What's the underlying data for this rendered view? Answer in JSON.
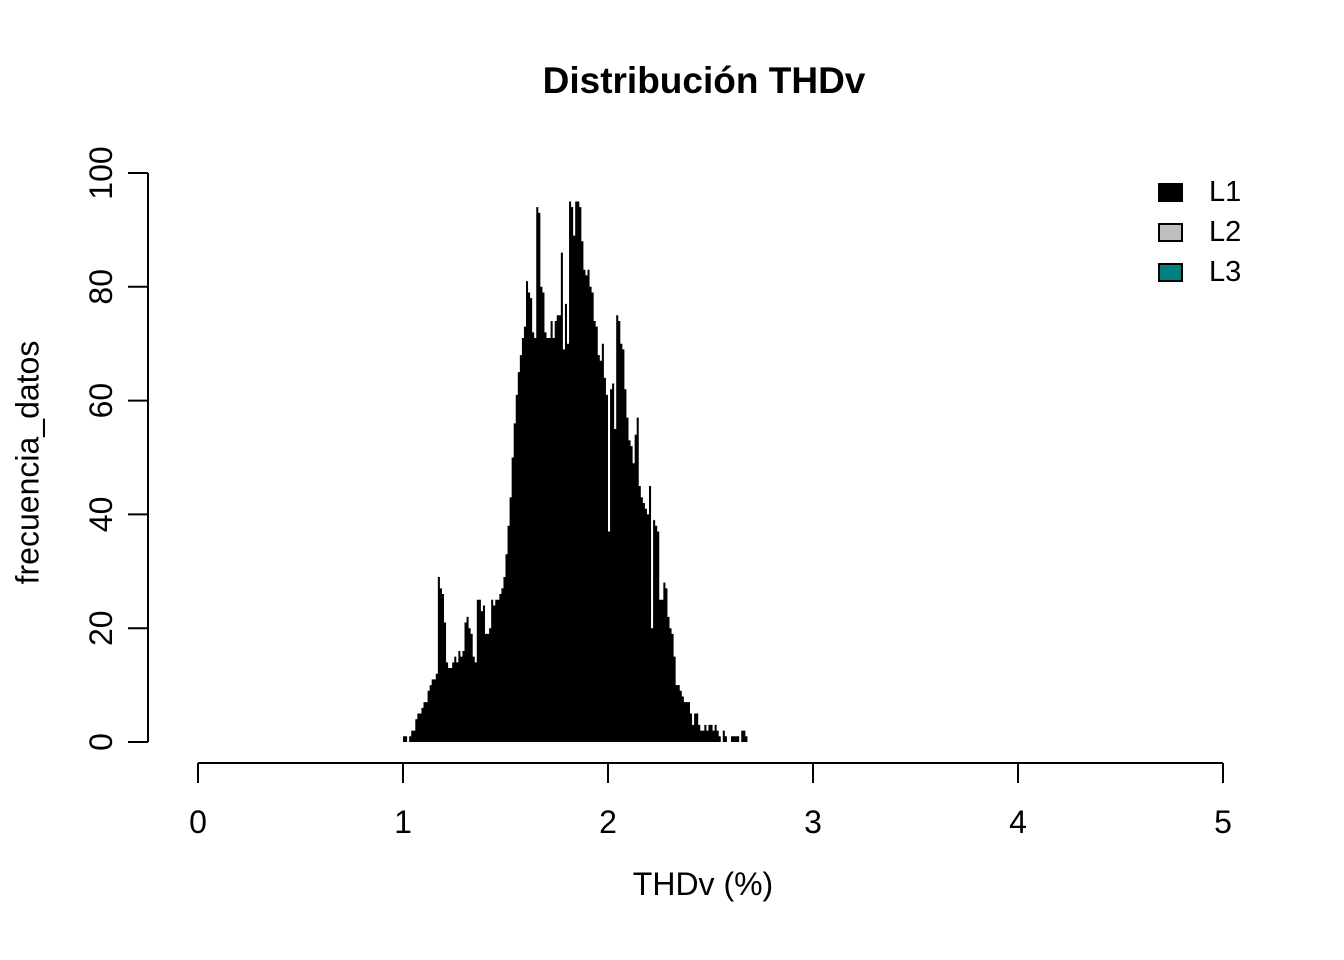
{
  "chart": {
    "title": "Distribución THDv",
    "xlabel": "THDv (%)",
    "ylabel": "frecuencia_datos"
  },
  "legend": {
    "items": [
      {
        "label": "L1",
        "color": "#000000"
      },
      {
        "label": "L2",
        "color": "#BEBEBE"
      },
      {
        "label": "L3",
        "color": "#008080"
      }
    ]
  },
  "chart_data": {
    "type": "bar",
    "subtype": "histogram",
    "title": "Distribución THDv",
    "xlabel": "THDv (%)",
    "ylabel": "frecuencia_datos",
    "xlim": [
      0,
      5
    ],
    "ylim": [
      0,
      100
    ],
    "xticks": [
      0,
      1,
      2,
      3,
      4,
      5
    ],
    "yticks": [
      0,
      20,
      40,
      60,
      80,
      100
    ],
    "grid": false,
    "legend_position": "top-right",
    "visible_series": "L1",
    "bar_color": "#000000",
    "bin_start": 1.0,
    "bin_width": 0.01,
    "bins": [
      1,
      1,
      0,
      1,
      2,
      2,
      4,
      5,
      5,
      6,
      7,
      7,
      9,
      10,
      11,
      11,
      12,
      29,
      27,
      26,
      21,
      14,
      13,
      13,
      14,
      15,
      14,
      16,
      15,
      16,
      21,
      22,
      20,
      19,
      15,
      14,
      25,
      25,
      23,
      24,
      19,
      19,
      20,
      25,
      24,
      25,
      25,
      26,
      27,
      29,
      33,
      38,
      43,
      50,
      56,
      61,
      65,
      68,
      71,
      73,
      81,
      79,
      78,
      72,
      71,
      94,
      93,
      80,
      79,
      72,
      71,
      71,
      74,
      71,
      74,
      75,
      75,
      86,
      69,
      77,
      70,
      95,
      94,
      89,
      95,
      95,
      94,
      88,
      83,
      82,
      83,
      80,
      79,
      74,
      73,
      68,
      67,
      70,
      64,
      61,
      37,
      62,
      63,
      55,
      75,
      74,
      70,
      69,
      62,
      57,
      53,
      52,
      49,
      54,
      57,
      45,
      43,
      42,
      41,
      40,
      45,
      20,
      39,
      38,
      37,
      25,
      25,
      28,
      27,
      22,
      20,
      19,
      15,
      10,
      10,
      9,
      8,
      7,
      7,
      7,
      5,
      3,
      5,
      5,
      3,
      2,
      2,
      3,
      2,
      3,
      3,
      2,
      3,
      2,
      1,
      0,
      2,
      1,
      0,
      0,
      1,
      1,
      1,
      1,
      0,
      2,
      2,
      1
    ]
  }
}
